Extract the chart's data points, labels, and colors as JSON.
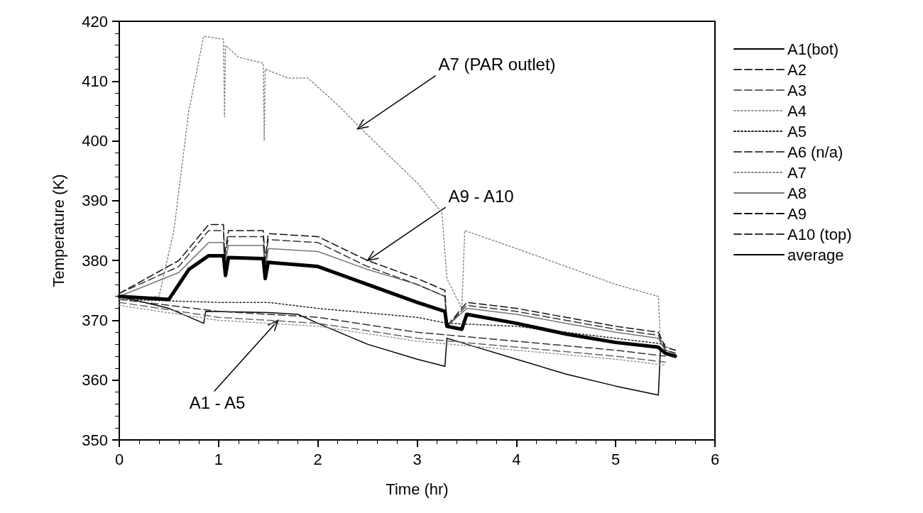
{
  "chart_data": {
    "type": "line",
    "xlabel": "Time (hr)",
    "ylabel": "Temperature (K)",
    "xlim": [
      0,
      6
    ],
    "ylim": [
      350,
      420
    ],
    "xticks": [
      0,
      1,
      2,
      3,
      4,
      5,
      6
    ],
    "yticks": [
      350,
      360,
      370,
      380,
      390,
      400,
      410,
      420
    ],
    "grid": false,
    "legend": "right",
    "marker": "none",
    "series": [
      {
        "name": "A1(bot)",
        "color": "#000000",
        "line_style": "solid",
        "x": [
          0,
          0.5,
          0.85,
          0.87,
          1.5,
          1.8,
          2,
          2.5,
          3,
          3.28,
          3.3,
          3.5,
          4,
          4.5,
          5,
          5.43,
          5.45,
          5.6
        ],
        "values": [
          374,
          372,
          369.5,
          371.5,
          371.3,
          371,
          369.5,
          366,
          363.5,
          362.3,
          367,
          366,
          363.5,
          361,
          359,
          357.5,
          365,
          364
        ]
      },
      {
        "name": "A2",
        "color": "#333333",
        "line_style": "dashed",
        "x": [
          0,
          1,
          2,
          3,
          4,
          5,
          5.5
        ],
        "values": [
          373.5,
          371.5,
          370.5,
          368,
          366.5,
          365,
          364
        ]
      },
      {
        "name": "A3",
        "color": "#666666",
        "line_style": "dashed",
        "x": [
          0,
          1,
          2,
          3,
          4,
          5,
          5.5
        ],
        "values": [
          373,
          370.5,
          369.5,
          367,
          365.5,
          364,
          363
        ]
      },
      {
        "name": "A4",
        "color": "#999999",
        "line_style": "dotted",
        "x": [
          0,
          1,
          2,
          3,
          4,
          5,
          5.5
        ],
        "values": [
          372.5,
          370,
          369,
          366.5,
          365,
          363.5,
          362.5
        ]
      },
      {
        "name": "A5",
        "color": "#222222",
        "line_style": "dotted",
        "x": [
          0,
          1,
          1.5,
          2,
          3,
          3.3,
          4,
          5,
          5.5
        ],
        "values": [
          373.5,
          373,
          373,
          372,
          370.5,
          369.5,
          369,
          367,
          366
        ]
      },
      {
        "name": "A6 (n/a)",
        "color": "#444444",
        "line_style": "dashed"
      },
      {
        "name": "A7",
        "color": "#888888",
        "line_style": "dotted",
        "x": [
          0,
          0.4,
          0.55,
          0.7,
          0.85,
          1.05,
          1.06,
          1.07,
          1.2,
          1.45,
          1.46,
          1.47,
          1.7,
          1.9,
          2.2,
          2.5,
          3,
          3.25,
          3.3,
          3.45,
          3.48,
          4,
          4.5,
          5,
          5.43,
          5.45,
          5.6
        ],
        "values": [
          373.5,
          374,
          385,
          405,
          417.5,
          417,
          404,
          416,
          414,
          413,
          400,
          412,
          410.5,
          410.5,
          406,
          401,
          393,
          388,
          377,
          372,
          385,
          382,
          379,
          376,
          374,
          366,
          365
        ]
      },
      {
        "name": "A8",
        "color": "#777777",
        "line_style": "solid",
        "x": [
          0,
          0.6,
          0.9,
          1.05,
          1.06,
          1.1,
          1.45,
          1.47,
          1.5,
          2,
          2.5,
          3,
          3.28,
          3.3,
          3.5,
          4,
          4.5,
          5,
          5.43,
          5.5,
          5.6
        ],
        "values": [
          374,
          378,
          383,
          383,
          379,
          382.5,
          382.5,
          378,
          382,
          381.5,
          378.5,
          376,
          374,
          369,
          372,
          371,
          369.5,
          368,
          367,
          365,
          364.5
        ]
      },
      {
        "name": "A9",
        "color": "#111111",
        "line_style": "dashed",
        "x": [
          0,
          0.6,
          0.9,
          1.05,
          1.06,
          1.1,
          1.45,
          1.47,
          1.5,
          2,
          2.5,
          3,
          3.28,
          3.3,
          3.5,
          4,
          4.5,
          5,
          5.43,
          5.5,
          5.6
        ],
        "values": [
          374.5,
          380,
          386,
          386,
          381,
          385,
          385,
          380,
          384.5,
          384,
          380,
          377,
          375,
          369,
          373,
          372,
          370.5,
          369,
          368,
          365.5,
          365
        ]
      },
      {
        "name": "A10 (top)",
        "color": "#333333",
        "line_style": "dashed",
        "x": [
          0,
          0.6,
          0.9,
          1.05,
          1.06,
          1.1,
          1.45,
          1.47,
          1.5,
          2,
          2.5,
          3,
          3.28,
          3.3,
          3.5,
          4,
          4.5,
          5,
          5.43,
          5.5,
          5.6
        ],
        "values": [
          374.5,
          379,
          385,
          385,
          380,
          384,
          384,
          379,
          383.5,
          383,
          379,
          376,
          374,
          369,
          372.5,
          371.5,
          370,
          368.5,
          367.5,
          365,
          364.5
        ]
      },
      {
        "name": "average",
        "color": "#000000",
        "line_style": "solid",
        "x": [
          0,
          0.5,
          0.7,
          0.9,
          1.05,
          1.07,
          1.1,
          1.45,
          1.47,
          1.5,
          2,
          2.5,
          3,
          3.28,
          3.3,
          3.45,
          3.5,
          4,
          4.5,
          5,
          5.43,
          5.5,
          5.6
        ],
        "values": [
          374,
          373.5,
          378.5,
          380.8,
          380.8,
          377.5,
          380.5,
          380.3,
          377,
          379.7,
          379,
          376,
          373,
          371.5,
          369,
          368.5,
          371,
          369.5,
          367.7,
          366.3,
          365.5,
          364.5,
          364
        ]
      }
    ],
    "annotations": [
      {
        "text": "A7 (PAR outlet)",
        "x": 2.4,
        "y": 402
      },
      {
        "text": "A9 - A10",
        "x": 2.5,
        "y": 380
      },
      {
        "text": "A1 - A5",
        "x": 1.6,
        "y": 370
      }
    ]
  }
}
